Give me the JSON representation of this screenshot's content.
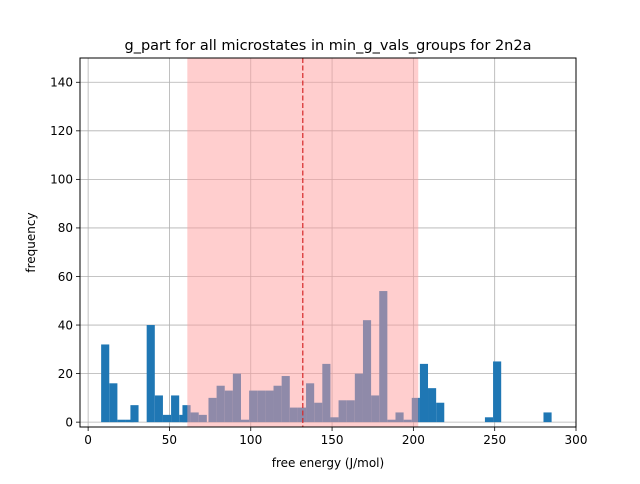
{
  "chart_data": {
    "type": "bar",
    "title": "g_part for all microstates in min_g_vals_groups for 2n2a",
    "xlabel": "free energy (J/mol)",
    "ylabel": "frequency",
    "xlim": [
      -5,
      300
    ],
    "ylim": [
      -2,
      150
    ],
    "xticks": [
      "0",
      "50",
      "100",
      "150",
      "200",
      "250",
      "300"
    ],
    "yticks": [
      "0",
      "20",
      "40",
      "60",
      "80",
      "100",
      "120",
      "140"
    ],
    "xtick_values": [
      0,
      50,
      100,
      150,
      200,
      250,
      300
    ],
    "ytick_values": [
      0,
      20,
      40,
      60,
      80,
      100,
      120,
      140
    ],
    "grid": true,
    "bar_color": "#1f77b4",
    "bin_width": 5,
    "bins": [
      {
        "x": 8,
        "y": 32
      },
      {
        "x": 13,
        "y": 16
      },
      {
        "x": 18,
        "y": 1
      },
      {
        "x": 23,
        "y": 1
      },
      {
        "x": 26,
        "y": 7
      },
      {
        "x": 36,
        "y": 40
      },
      {
        "x": 41,
        "y": 11
      },
      {
        "x": 46,
        "y": 3
      },
      {
        "x": 51,
        "y": 11
      },
      {
        "x": 56,
        "y": 3
      },
      {
        "x": 58,
        "y": 7
      },
      {
        "x": 63,
        "y": 4
      },
      {
        "x": 68,
        "y": 3
      },
      {
        "x": 74,
        "y": 10
      },
      {
        "x": 79,
        "y": 15
      },
      {
        "x": 84,
        "y": 13
      },
      {
        "x": 89,
        "y": 20
      },
      {
        "x": 94,
        "y": 1
      },
      {
        "x": 99,
        "y": 13
      },
      {
        "x": 104,
        "y": 13
      },
      {
        "x": 109,
        "y": 13
      },
      {
        "x": 114,
        "y": 15
      },
      {
        "x": 119,
        "y": 19
      },
      {
        "x": 124,
        "y": 6
      },
      {
        "x": 129,
        "y": 6
      },
      {
        "x": 134,
        "y": 16
      },
      {
        "x": 139,
        "y": 8
      },
      {
        "x": 144,
        "y": 24
      },
      {
        "x": 149,
        "y": 2
      },
      {
        "x": 154,
        "y": 9
      },
      {
        "x": 159,
        "y": 9
      },
      {
        "x": 164,
        "y": 20
      },
      {
        "x": 169,
        "y": 42
      },
      {
        "x": 174,
        "y": 11
      },
      {
        "x": 179,
        "y": 54
      },
      {
        "x": 184,
        "y": 1
      },
      {
        "x": 189,
        "y": 4
      },
      {
        "x": 194,
        "y": 1
      },
      {
        "x": 199,
        "y": 10
      },
      {
        "x": 204,
        "y": 24
      },
      {
        "x": 209,
        "y": 14
      },
      {
        "x": 214,
        "y": 8
      },
      {
        "x": 244,
        "y": 2
      },
      {
        "x": 249,
        "y": 25
      },
      {
        "x": 280,
        "y": 4
      }
    ],
    "shaded_region": {
      "x0": 61,
      "x1": 203,
      "color": "#ff9e9e",
      "opacity": 0.5
    },
    "vline": {
      "x": 132,
      "color": "#d62728",
      "style": "dashed"
    }
  }
}
